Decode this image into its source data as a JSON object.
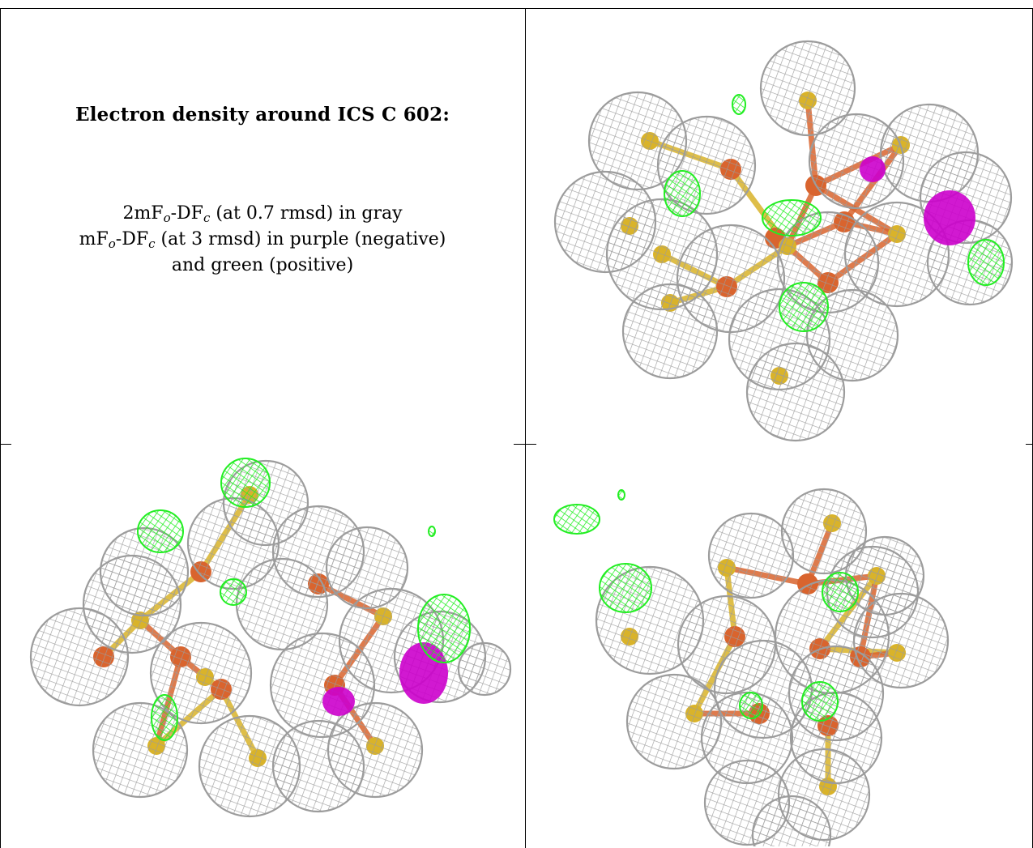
{
  "caption": {
    "title": "Electron density around ICS C 602:",
    "line1": {
      "pre": "2mF",
      "sub1": "o",
      "mid": "-DF",
      "sub2": "c",
      "post": " (at 0.7 rmsd) in gray"
    },
    "line2": {
      "pre": "mF",
      "sub1": "o",
      "mid": "-DF",
      "sub2": "c",
      "post": " (at 3 rmsd) in purple (negative)"
    },
    "line3": "and green (positive)"
  },
  "colors": {
    "mesh_gray": "#9c9c9c",
    "positive_green": "#22ee22",
    "negative_purple": "#cc00cc",
    "iron_orange": "#d9642e",
    "sulfur_yellow": "#d9b32a",
    "border": "#000000"
  },
  "panels": [
    {
      "id": "view-top-right",
      "spheres": [
        [
          345,
          95,
          58
        ],
        [
          135,
          160,
          60
        ],
        [
          220,
          190,
          60
        ],
        [
          405,
          185,
          58
        ],
        [
          495,
          175,
          60
        ],
        [
          540,
          230,
          56
        ],
        [
          95,
          260,
          62
        ],
        [
          165,
          300,
          68
        ],
        [
          250,
          330,
          66
        ],
        [
          370,
          310,
          62
        ],
        [
          455,
          300,
          64
        ],
        [
          545,
          310,
          52
        ],
        [
          175,
          395,
          58
        ],
        [
          310,
          405,
          62
        ],
        [
          400,
          400,
          56
        ],
        [
          330,
          470,
          60
        ]
      ],
      "iron": [
        [
          250,
          195
        ],
        [
          355,
          215
        ],
        [
          305,
          280
        ],
        [
          390,
          260
        ],
        [
          245,
          340
        ],
        [
          370,
          335
        ]
      ],
      "sulfur": [
        [
          150,
          160
        ],
        [
          345,
          110
        ],
        [
          460,
          165
        ],
        [
          125,
          265
        ],
        [
          165,
          300
        ],
        [
          455,
          275
        ],
        [
          175,
          360
        ],
        [
          310,
          450
        ],
        [
          320,
          290
        ]
      ],
      "green": [
        [
          190,
          225,
          22,
          28
        ],
        [
          325,
          255,
          36,
          22
        ],
        [
          340,
          365,
          30,
          30
        ],
        [
          565,
          310,
          22,
          28
        ],
        [
          260,
          115,
          8,
          12
        ]
      ],
      "purple": [
        [
          520,
          255,
          32,
          34
        ],
        [
          425,
          195,
          16,
          16
        ]
      ]
    },
    {
      "id": "view-bottom-left",
      "spheres": [
        [
          325,
          70,
          52
        ],
        [
          175,
          155,
          54
        ],
        [
          285,
          120,
          56
        ],
        [
          390,
          130,
          56
        ],
        [
          450,
          150,
          50
        ],
        [
          160,
          195,
          60
        ],
        [
          95,
          260,
          60
        ],
        [
          245,
          280,
          62
        ],
        [
          345,
          195,
          56
        ],
        [
          395,
          295,
          64
        ],
        [
          480,
          240,
          64
        ],
        [
          540,
          260,
          56
        ],
        [
          170,
          375,
          58
        ],
        [
          305,
          395,
          62
        ],
        [
          390,
          395,
          56
        ],
        [
          460,
          375,
          58
        ],
        [
          595,
          275,
          32
        ]
      ],
      "iron": [
        [
          245,
          155
        ],
        [
          390,
          170
        ],
        [
          270,
          300
        ],
        [
          410,
          295
        ],
        [
          125,
          260
        ],
        [
          220,
          260
        ]
      ],
      "sulfur": [
        [
          305,
          60
        ],
        [
          170,
          215
        ],
        [
          470,
          210
        ],
        [
          190,
          370
        ],
        [
          315,
          385
        ],
        [
          460,
          370
        ],
        [
          250,
          285
        ]
      ],
      "green": [
        [
          195,
          105,
          28,
          26
        ],
        [
          300,
          45,
          30,
          30
        ],
        [
          545,
          225,
          32,
          42
        ],
        [
          285,
          180,
          16,
          16
        ],
        [
          200,
          335,
          16,
          28
        ],
        [
          530,
          105,
          4,
          6
        ]
      ],
      "purple": [
        [
          520,
          280,
          30,
          38
        ],
        [
          415,
          315,
          20,
          18
        ]
      ]
    },
    {
      "id": "view-bottom-right",
      "spheres": [
        [
          365,
          105,
          52
        ],
        [
          275,
          135,
          52
        ],
        [
          440,
          160,
          48
        ],
        [
          425,
          180,
          56
        ],
        [
          150,
          215,
          66
        ],
        [
          245,
          245,
          60
        ],
        [
          375,
          235,
          70
        ],
        [
          460,
          240,
          58
        ],
        [
          290,
          300,
          60
        ],
        [
          380,
          305,
          58
        ],
        [
          180,
          340,
          58
        ],
        [
          270,
          360,
          56
        ],
        [
          380,
          360,
          56
        ],
        [
          365,
          430,
          56
        ],
        [
          270,
          440,
          52
        ],
        [
          325,
          480,
          48
        ]
      ],
      "iron": [
        [
          255,
          235
        ],
        [
          345,
          170
        ],
        [
          360,
          250
        ],
        [
          285,
          330
        ],
        [
          370,
          345
        ],
        [
          410,
          260
        ]
      ],
      "sulfur": [
        [
          375,
          95
        ],
        [
          125,
          235
        ],
        [
          245,
          150
        ],
        [
          455,
          255
        ],
        [
          205,
          330
        ],
        [
          370,
          420
        ],
        [
          430,
          160
        ]
      ],
      "green": [
        [
          120,
          175,
          32,
          30
        ],
        [
          60,
          90,
          28,
          18
        ],
        [
          385,
          180,
          22,
          24
        ],
        [
          360,
          315,
          22,
          24
        ],
        [
          275,
          320,
          14,
          16
        ],
        [
          115,
          60,
          4,
          6
        ]
      ],
      "purple": []
    }
  ]
}
